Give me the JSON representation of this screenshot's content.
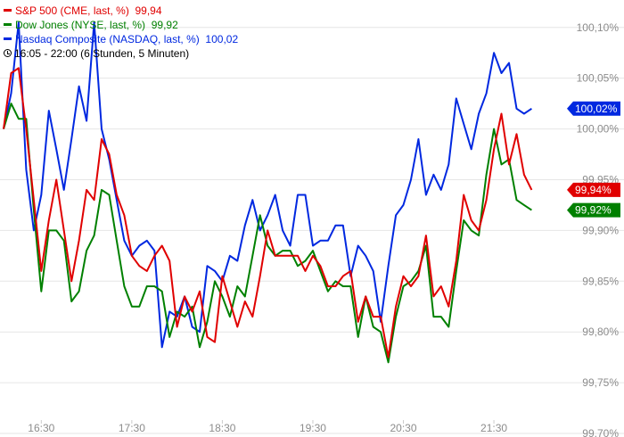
{
  "legend": {
    "series": [
      {
        "label": "S&P 500 (CME, last, %)",
        "value": "99,94",
        "color": "#e00000"
      },
      {
        "label": "Dow Jones (NYSE, last, %)",
        "value": "99,92",
        "color": "#008000"
      },
      {
        "label": "Nasdaq Composite (NASDAQ, last, %)",
        "value": "100,02",
        "color": "#0028e0"
      }
    ],
    "time_range": "16:05 - 22:00",
    "period": "(6 Stunden, 5 Minuten)",
    "clock_icon": "clock-icon"
  },
  "chart_data": {
    "type": "line",
    "ylim": [
      99.7,
      100.12
    ],
    "yticks": [
      99.7,
      99.75,
      99.8,
      99.85,
      99.9,
      99.95,
      100.0,
      100.05,
      100.1
    ],
    "ytick_labels": [
      "99,70%",
      "99,75%",
      "99,80%",
      "99,85%",
      "99,90%",
      "99,95%",
      "100,00%",
      "100,05%",
      "100,10%"
    ],
    "xtick_labels": [
      "16:30",
      "17:30",
      "18:30",
      "19:30",
      "20:30",
      "21:30"
    ],
    "xticks_minutes": [
      25,
      85,
      145,
      205,
      265,
      325
    ],
    "x_minutes": [
      0,
      5,
      10,
      15,
      20,
      25,
      30,
      35,
      40,
      45,
      50,
      55,
      60,
      65,
      70,
      75,
      80,
      85,
      90,
      95,
      100,
      105,
      110,
      115,
      120,
      125,
      130,
      135,
      140,
      145,
      150,
      155,
      160,
      165,
      170,
      175,
      180,
      185,
      190,
      195,
      200,
      205,
      210,
      215,
      220,
      225,
      230,
      235,
      240,
      245,
      250,
      255,
      260,
      265,
      270,
      275,
      280,
      285,
      290,
      295,
      300,
      305,
      310,
      315,
      320,
      325,
      330,
      335,
      340,
      345,
      350
    ],
    "series": [
      {
        "name": "S&P 500 (CME, last, %)",
        "color": "#e00000",
        "values": [
          100.0,
          100.055,
          100.06,
          100.0,
          99.93,
          99.86,
          99.91,
          99.95,
          99.9,
          99.85,
          99.89,
          99.94,
          99.93,
          99.99,
          99.975,
          99.935,
          99.915,
          99.875,
          99.865,
          99.86,
          99.875,
          99.885,
          99.87,
          99.805,
          99.835,
          99.82,
          99.84,
          99.795,
          99.79,
          99.855,
          99.83,
          99.805,
          99.83,
          99.815,
          99.855,
          99.9,
          99.875,
          99.875,
          99.875,
          99.875,
          99.86,
          99.875,
          99.865,
          99.845,
          99.845,
          99.855,
          99.86,
          99.81,
          99.835,
          99.815,
          99.815,
          99.775,
          99.825,
          99.855,
          99.845,
          99.855,
          99.895,
          99.835,
          99.845,
          99.825,
          99.87,
          99.935,
          99.91,
          99.9,
          99.93,
          99.98,
          100.015,
          99.965,
          99.995,
          99.955,
          99.94
        ]
      },
      {
        "name": "Dow Jones (NYSE, last, %)",
        "color": "#008000",
        "values": [
          100.0,
          100.025,
          100.01,
          100.01,
          99.92,
          99.84,
          99.9,
          99.9,
          99.89,
          99.83,
          99.84,
          99.88,
          99.895,
          99.94,
          99.935,
          99.89,
          99.845,
          99.825,
          99.825,
          99.845,
          99.845,
          99.84,
          99.795,
          99.82,
          99.815,
          99.825,
          99.785,
          99.81,
          99.85,
          99.835,
          99.815,
          99.845,
          99.835,
          99.875,
          99.915,
          99.885,
          99.875,
          99.88,
          99.88,
          99.865,
          99.87,
          99.88,
          99.86,
          99.84,
          99.85,
          99.845,
          99.845,
          99.795,
          99.835,
          99.805,
          99.8,
          99.77,
          99.815,
          99.845,
          99.85,
          99.86,
          99.885,
          99.815,
          99.815,
          99.805,
          99.86,
          99.91,
          99.9,
          99.895,
          99.955,
          100.0,
          99.965,
          99.97,
          99.93,
          99.925,
          99.92
        ]
      },
      {
        "name": "Nasdaq Composite (NASDAQ, last, %)",
        "color": "#0028e0",
        "values": [
          100.0,
          100.035,
          100.105,
          99.96,
          99.9,
          99.935,
          100.018,
          99.98,
          99.94,
          99.99,
          100.042,
          100.008,
          100.105,
          100.0,
          99.97,
          99.93,
          99.89,
          99.875,
          99.885,
          99.89,
          99.88,
          99.785,
          99.82,
          99.815,
          99.835,
          99.805,
          99.8,
          99.865,
          99.86,
          99.85,
          99.875,
          99.87,
          99.905,
          99.93,
          99.9,
          99.915,
          99.935,
          99.9,
          99.885,
          99.935,
          99.935,
          99.885,
          99.89,
          99.89,
          99.905,
          99.905,
          99.855,
          99.885,
          99.875,
          99.86,
          99.81,
          99.865,
          99.915,
          99.925,
          99.95,
          99.99,
          99.935,
          99.955,
          99.94,
          99.965,
          100.03,
          100.005,
          99.98,
          100.015,
          100.035,
          100.075,
          100.055,
          100.065,
          100.02,
          100.015,
          100.02
        ]
      }
    ],
    "last_value_badges": [
      {
        "label": "100,02%",
        "value": 100.02,
        "color": "#0028e0"
      },
      {
        "label": "99,94%",
        "value": 99.94,
        "color": "#e00000",
        "text_color": "#e00000"
      },
      {
        "label": "99,92%",
        "value": 99.92,
        "color": "#008000"
      }
    ],
    "grid": "horizontal",
    "legend_position": "top-left"
  }
}
